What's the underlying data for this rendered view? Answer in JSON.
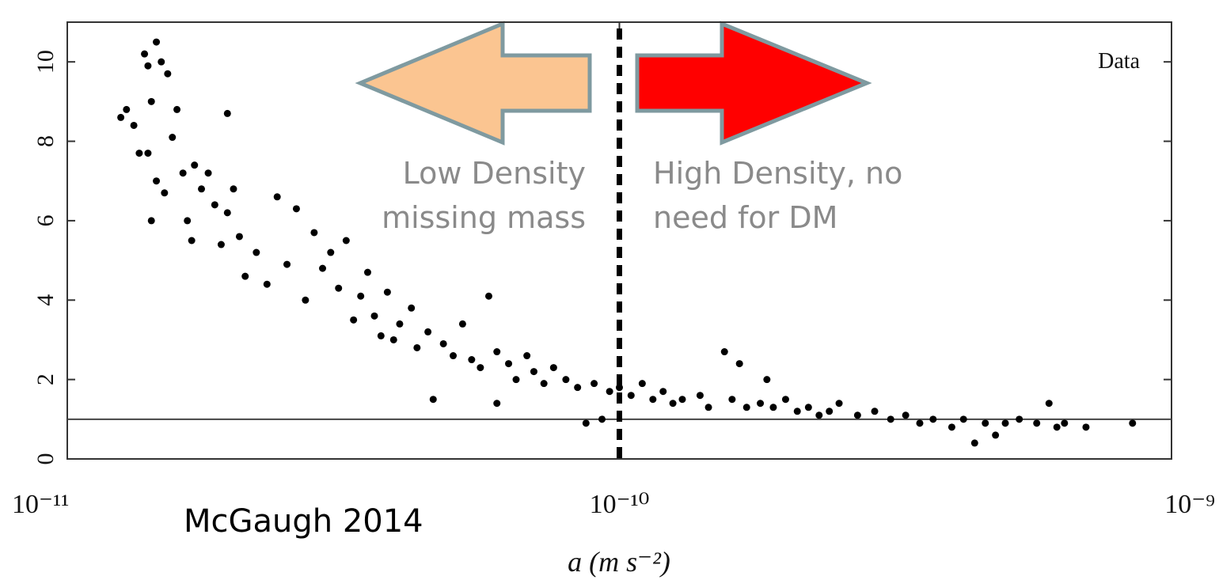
{
  "chart_data": {
    "type": "scatter",
    "xscale": "log",
    "xlim": [
      1e-11,
      1e-09
    ],
    "xticks": [
      {
        "value": 1e-11,
        "label": "10⁻¹¹"
      },
      {
        "value": 1e-10,
        "label": "10⁻¹⁰"
      },
      {
        "value": 1e-09,
        "label": "10⁻⁹"
      }
    ],
    "ylim": [
      0,
      11
    ],
    "yticks": [
      0,
      2,
      4,
      6,
      8,
      10
    ],
    "x_label": "a (m s⁻²)",
    "reference_y": 1,
    "reference_x": 1e-10,
    "source": "McGaugh 2014",
    "low_density_label": [
      "Low Density",
      "missing mass"
    ],
    "high_density_label": [
      "High Density, no",
      "need for DM"
    ],
    "series": [
      {
        "name": "Data",
        "color": "#000000",
        "x": [
          1.25e-11,
          1.28e-11,
          1.32e-11,
          1.35e-11,
          1.38e-11,
          1.4e-11,
          1.42e-11,
          1.45e-11,
          1.48e-11,
          1.52e-11,
          1.55e-11,
          1.4e-11,
          1.45e-11,
          1.5e-11,
          1.42e-11,
          1.58e-11,
          1.62e-11,
          1.65e-11,
          1.7e-11,
          1.75e-11,
          1.68e-11,
          1.8e-11,
          1.85e-11,
          1.9e-11,
          1.95e-11,
          1.95e-11,
          2e-11,
          2.05e-11,
          2.1e-11,
          2.2e-11,
          2.3e-11,
          2.4e-11,
          2.5e-11,
          2.6e-11,
          2.7e-11,
          2.8e-11,
          2.9e-11,
          3e-11,
          3.1e-11,
          3.2e-11,
          3.3e-11,
          3.4e-11,
          3.5e-11,
          3.6e-11,
          3.7e-11,
          3.8e-11,
          3.9e-11,
          4e-11,
          4.2e-11,
          4.3e-11,
          4.5e-11,
          4.6e-11,
          4.8e-11,
          5e-11,
          5.2e-11,
          5.4e-11,
          5.6e-11,
          5.8e-11,
          6e-11,
          6e-11,
          6.3e-11,
          6.5e-11,
          6.8e-11,
          7e-11,
          7.3e-11,
          7.6e-11,
          8e-11,
          8.4e-11,
          8.7e-11,
          9e-11,
          9.3e-11,
          9.6e-11,
          1e-10,
          1.05e-10,
          1.1e-10,
          1.15e-10,
          1.2e-10,
          1.25e-10,
          1.3e-10,
          1.4e-10,
          1.45e-10,
          1.55e-10,
          1.6e-10,
          1.65e-10,
          1.7e-10,
          1.8e-10,
          1.85e-10,
          1.9e-10,
          2e-10,
          2.1e-10,
          2.2e-10,
          2.3e-10,
          2.4e-10,
          2.5e-10,
          2.7e-10,
          2.9e-10,
          3.1e-10,
          3.3e-10,
          3.5e-10,
          3.7e-10,
          4e-10,
          4.2e-10,
          4.4e-10,
          4.6e-10,
          4.8e-10,
          5e-10,
          5.3e-10,
          5.7e-10,
          6e-10,
          6.2e-10,
          6.4e-10,
          7e-10,
          8.5e-10
        ],
        "values": [
          8.6,
          8.8,
          8.4,
          7.7,
          10.2,
          9.9,
          9.0,
          10.5,
          10.0,
          9.7,
          8.1,
          7.7,
          7.0,
          6.7,
          6.0,
          8.8,
          7.2,
          6.0,
          7.4,
          6.8,
          5.5,
          7.2,
          6.4,
          5.4,
          8.7,
          6.2,
          6.8,
          5.6,
          4.6,
          5.2,
          4.4,
          6.6,
          4.9,
          6.3,
          4.0,
          5.7,
          4.8,
          5.2,
          4.3,
          5.5,
          3.5,
          4.1,
          4.7,
          3.6,
          3.1,
          4.2,
          3.0,
          3.4,
          3.8,
          2.8,
          3.2,
          1.5,
          2.9,
          2.6,
          3.4,
          2.5,
          2.3,
          4.1,
          2.7,
          1.4,
          2.4,
          2.0,
          2.6,
          2.2,
          1.9,
          2.3,
          2.0,
          1.8,
          0.9,
          1.9,
          1.0,
          1.7,
          1.8,
          1.6,
          1.9,
          1.5,
          1.7,
          1.4,
          1.5,
          1.6,
          1.3,
          2.7,
          1.5,
          2.4,
          1.3,
          1.4,
          2.0,
          1.3,
          1.5,
          1.2,
          1.3,
          1.1,
          1.2,
          1.4,
          1.1,
          1.2,
          1.0,
          1.1,
          0.9,
          1.0,
          0.8,
          1.0,
          0.4,
          0.9,
          0.6,
          0.9,
          1.0,
          0.9,
          1.4,
          0.8,
          0.9,
          0.8,
          0.9
        ]
      }
    ]
  }
}
